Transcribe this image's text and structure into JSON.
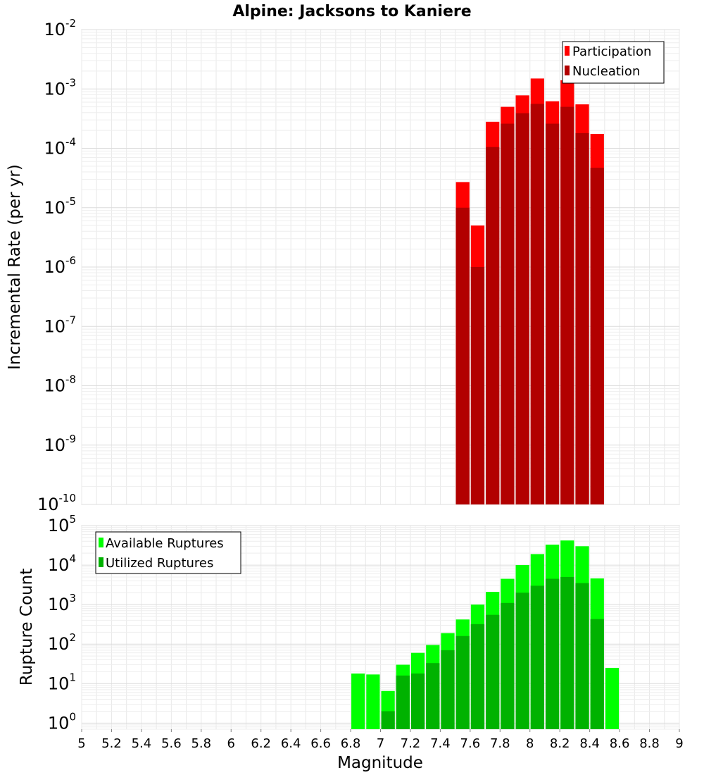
{
  "chart_data": [
    {
      "type": "bar",
      "title": "Alpine: Jacksons to Kaniere",
      "ylabel": "Incremental Rate (per yr)",
      "xlim": [
        5,
        9
      ],
      "ylim": [
        1e-10,
        0.01
      ],
      "yscale": "log",
      "grid": true,
      "legend_position": "top-right",
      "y_ticks": [
        {
          "base": "10",
          "exp": "-10"
        },
        {
          "base": "10",
          "exp": "-9"
        },
        {
          "base": "10",
          "exp": "-8"
        },
        {
          "base": "10",
          "exp": "-7"
        },
        {
          "base": "10",
          "exp": "-6"
        },
        {
          "base": "10",
          "exp": "-5"
        },
        {
          "base": "10",
          "exp": "-4"
        },
        {
          "base": "10",
          "exp": "-3"
        },
        {
          "base": "10",
          "exp": "-2"
        }
      ],
      "x": [
        7.55,
        7.65,
        7.75,
        7.85,
        7.95,
        8.05,
        8.15,
        8.25,
        8.35,
        8.45
      ],
      "series": [
        {
          "name": "Participation",
          "color": "#ff0000",
          "values": [
            2.7e-05,
            5e-06,
            0.00028,
            0.0005,
            0.00078,
            0.0015,
            0.00062,
            0.0014,
            0.00055,
            0.000175
          ]
        },
        {
          "name": "Nucleation",
          "color": "#b20000",
          "values": [
            1e-05,
            1e-06,
            0.000105,
            0.00026,
            0.00039,
            0.00056,
            0.00026,
            0.0005,
            0.00018,
            4.7e-05
          ]
        }
      ]
    },
    {
      "type": "bar",
      "xlabel": "Magnitude",
      "ylabel": "Rupture Count",
      "xlim": [
        5,
        9
      ],
      "ylim": [
        0.7,
        100000.0
      ],
      "yscale": "log",
      "grid": true,
      "legend_position": "top-left",
      "x_ticks": [
        "5",
        "5.2",
        "5.4",
        "5.6",
        "5.8",
        "6",
        "6.2",
        "6.4",
        "6.6",
        "6.8",
        "7",
        "7.2",
        "7.4",
        "7.6",
        "7.8",
        "8",
        "8.2",
        "8.4",
        "8.6",
        "8.8",
        "9"
      ],
      "y_ticks": [
        {
          "base": "10",
          "exp": "0"
        },
        {
          "base": "10",
          "exp": "1"
        },
        {
          "base": "10",
          "exp": "2"
        },
        {
          "base": "10",
          "exp": "3"
        },
        {
          "base": "10",
          "exp": "4"
        },
        {
          "base": "10",
          "exp": "5"
        }
      ],
      "x": [
        6.85,
        6.95,
        7.05,
        7.15,
        7.25,
        7.35,
        7.45,
        7.55,
        7.65,
        7.75,
        7.85,
        7.95,
        8.05,
        8.15,
        8.25,
        8.35,
        8.45,
        8.55
      ],
      "series": [
        {
          "name": "Available Ruptures",
          "color": "#00ff00",
          "values": [
            18,
            17,
            6.5,
            30,
            60,
            95,
            190,
            420,
            1000,
            2100,
            4500,
            10000,
            19000,
            33000,
            42000,
            30000,
            4600,
            25
          ]
        },
        {
          "name": "Utilized Ruptures",
          "color": "#00b200",
          "values": [
            null,
            null,
            2,
            16,
            18,
            33,
            70,
            160,
            320,
            550,
            1100,
            2000,
            3000,
            4500,
            5000,
            3500,
            430,
            null
          ]
        }
      ]
    }
  ]
}
